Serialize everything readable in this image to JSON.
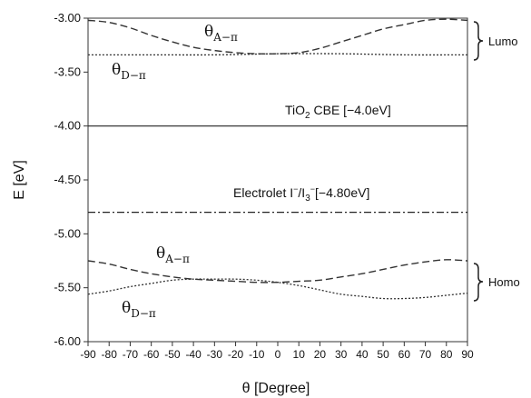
{
  "chart_data": {
    "type": "line",
    "xlabel": "θ [Degree]",
    "ylabel": "E [eV]",
    "xlim": [
      -90,
      90
    ],
    "ylim": [
      -6.0,
      -3.0
    ],
    "grid": false,
    "x_ticks": [
      "-90",
      "-80",
      "-70",
      "-60",
      "-50",
      "-40",
      "-30",
      "-20",
      "-10",
      "0",
      "10",
      "20",
      "30",
      "40",
      "50",
      "60",
      "70",
      "80",
      "90"
    ],
    "y_ticks": [
      "-3.00",
      "-3.50",
      "-4.00",
      "-4.50",
      "-5.00",
      "-5.50",
      "-6.00"
    ],
    "series": [
      {
        "name": "θA−π",
        "group": "Lumo",
        "style": "dashed",
        "color": "#333333",
        "x": [
          -90,
          -80,
          -70,
          -60,
          -50,
          -40,
          -30,
          -20,
          -10,
          0,
          10,
          20,
          30,
          40,
          50,
          60,
          70,
          80,
          90
        ],
        "y": [
          -3.02,
          -3.04,
          -3.09,
          -3.16,
          -3.22,
          -3.27,
          -3.3,
          -3.32,
          -3.33,
          -3.33,
          -3.32,
          -3.28,
          -3.22,
          -3.16,
          -3.1,
          -3.06,
          -3.02,
          -3.01,
          -3.02
        ]
      },
      {
        "name": "θD−π",
        "group": "Lumo",
        "style": "dotted",
        "color": "#333333",
        "x": [
          -90,
          -60,
          -30,
          0,
          30,
          60,
          90
        ],
        "y": [
          -3.34,
          -3.34,
          -3.34,
          -3.33,
          -3.33,
          -3.34,
          -3.34
        ]
      },
      {
        "name": "θA−π",
        "group": "Homo",
        "style": "dashed",
        "color": "#333333",
        "x": [
          -90,
          -80,
          -70,
          -60,
          -50,
          -40,
          -30,
          -20,
          -10,
          0,
          10,
          20,
          30,
          40,
          50,
          60,
          70,
          80,
          90
        ],
        "y": [
          -5.25,
          -5.28,
          -5.33,
          -5.37,
          -5.4,
          -5.42,
          -5.43,
          -5.44,
          -5.45,
          -5.45,
          -5.44,
          -5.43,
          -5.4,
          -5.37,
          -5.33,
          -5.29,
          -5.26,
          -5.24,
          -5.25
        ]
      },
      {
        "name": "θD−π",
        "group": "Homo",
        "style": "dotted",
        "color": "#333333",
        "x": [
          -90,
          -80,
          -70,
          -60,
          -50,
          -40,
          -30,
          -20,
          -10,
          0,
          10,
          20,
          30,
          40,
          50,
          60,
          70,
          80,
          90
        ],
        "y": [
          -5.56,
          -5.53,
          -5.49,
          -5.46,
          -5.43,
          -5.42,
          -5.42,
          -5.42,
          -5.43,
          -5.45,
          -5.48,
          -5.52,
          -5.56,
          -5.58,
          -5.6,
          -5.6,
          -5.59,
          -5.57,
          -5.55
        ]
      }
    ],
    "reference_lines": [
      {
        "label": "TiO2 CBE [−4.0eV]",
        "y": -4.0,
        "style": "solid"
      },
      {
        "label": "Electrolet I−/I3−[−4.80eV]",
        "y": -4.8,
        "style": "dashdot"
      }
    ],
    "annotations": {
      "lumo": "Lumo",
      "homo": "Homo",
      "tio2_prefix": "TiO",
      "tio2_sub": "2",
      "tio2_suffix": " CBE [−4.0eV]",
      "elec_prefix": "Electrolet I",
      "elec_sup1": "−",
      "elec_mid": "/I",
      "elec_sub": "3",
      "elec_sup2": "−",
      "elec_suffix": "[−4.80eV]",
      "theta_symbol": "θ",
      "sub_a": "A−π",
      "sub_d": "D−π"
    }
  }
}
